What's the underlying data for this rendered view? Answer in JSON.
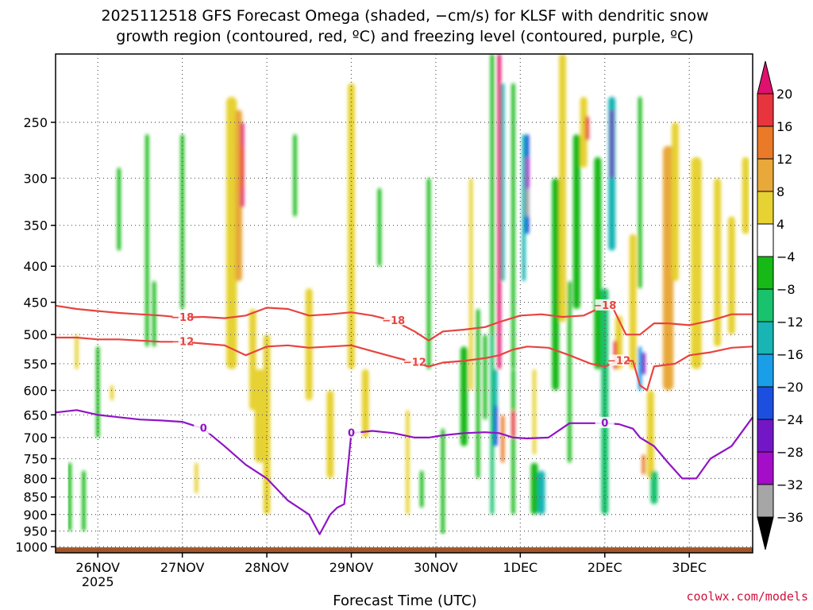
{
  "chart_data": {
    "type": "heatmap",
    "title_line1": "2025112518 GFS Forecast Omega (shaded, −cm/s) for KLSF with dendritic snow",
    "title_line2": "growth region (contoured, red, ºC) and freezing level (contoured, purple, ºC)",
    "xlabel": "Forecast Time (UTC)",
    "credit": "coolwx.com/models",
    "y_ticks": [
      {
        "label": "250",
        "value": 250
      },
      {
        "label": "300",
        "value": 300
      },
      {
        "label": "350",
        "value": 350
      },
      {
        "label": "400",
        "value": 400
      },
      {
        "label": "450",
        "value": 450
      },
      {
        "label": "500",
        "value": 500
      },
      {
        "label": "550",
        "value": 550
      },
      {
        "label": "600",
        "value": 600
      },
      {
        "label": "650",
        "value": 650
      },
      {
        "label": "700",
        "value": 700
      },
      {
        "label": "750",
        "value": 750
      },
      {
        "label": "800",
        "value": 800
      },
      {
        "label": "850",
        "value": 850
      },
      {
        "label": "900",
        "value": 900
      },
      {
        "label": "950",
        "value": 950
      },
      {
        "label": "1000",
        "value": 1000
      }
    ],
    "y_range_hpa": [
      200,
      1020
    ],
    "x_range_hours": [
      -6,
      192
    ],
    "x_ticks": [
      {
        "label": "26NOV",
        "hour": 6,
        "sub": "2025"
      },
      {
        "label": "27NOV",
        "hour": 30
      },
      {
        "label": "28NOV",
        "hour": 54
      },
      {
        "label": "29NOV",
        "hour": 78
      },
      {
        "label": "30NOV",
        "hour": 102
      },
      {
        "label": "1DEC",
        "hour": 126
      },
      {
        "label": "2DEC",
        "hour": 150
      },
      {
        "label": "3DEC",
        "hour": 174
      }
    ],
    "colorbar": {
      "labels": [
        "20",
        "16",
        "12",
        "8",
        "4",
        "−4",
        "−8",
        "−12",
        "−16",
        "−20",
        "−24",
        "−28",
        "−32",
        "−36"
      ],
      "colors": [
        "#e0106e",
        "#e8343c",
        "#ea7a28",
        "#e8a83a",
        "#e6d233",
        "#ffffff",
        "#17b917",
        "#19c26c",
        "#19b4b4",
        "#1a9ee8",
        "#1c4fe0",
        "#7317c6",
        "#a40ec8",
        "#a6a6a6",
        "#000000"
      ]
    },
    "contours": [
      {
        "label": "−18",
        "color": "#e8433f",
        "level": -18,
        "hours": [
          -6,
          0,
          6,
          12,
          18,
          24,
          30,
          36,
          42,
          48,
          54,
          60,
          66,
          72,
          78,
          84,
          90,
          96,
          100,
          104,
          110,
          116,
          120,
          126,
          132,
          138,
          144,
          150,
          152,
          156,
          160,
          164,
          168,
          174,
          180,
          186,
          192
        ],
        "hpa": [
          455,
          460,
          463,
          466,
          468,
          470,
          473,
          472,
          474,
          470,
          458,
          460,
          470,
          468,
          465,
          470,
          478,
          495,
          510,
          495,
          492,
          488,
          480,
          470,
          468,
          472,
          470,
          455,
          455,
          500,
          500,
          482,
          482,
          485,
          478,
          468,
          468
        ]
      },
      {
        "label": "−12",
        "color": "#e8433f",
        "level": -12,
        "hours": [
          -6,
          0,
          6,
          12,
          18,
          24,
          30,
          36,
          42,
          48,
          52,
          54,
          60,
          66,
          72,
          78,
          84,
          90,
          96,
          100,
          104,
          110,
          116,
          120,
          124,
          128,
          134,
          140,
          146,
          150,
          154,
          158,
          160,
          162,
          164,
          170,
          174,
          180,
          186,
          192
        ],
        "hpa": [
          505,
          505,
          508,
          508,
          510,
          512,
          512,
          515,
          518,
          535,
          525,
          520,
          518,
          522,
          520,
          518,
          528,
          538,
          548,
          555,
          548,
          545,
          540,
          535,
          525,
          520,
          522,
          535,
          550,
          555,
          545,
          545,
          590,
          600,
          555,
          550,
          535,
          530,
          522,
          520
        ]
      },
      {
        "label": "0",
        "color": "#9014c4",
        "level": 0,
        "hours": [
          -6,
          0,
          6,
          12,
          18,
          24,
          30,
          36,
          42,
          48,
          54,
          60,
          66,
          68,
          69,
          70,
          72,
          74,
          76,
          78,
          84,
          90,
          96,
          100,
          104,
          110,
          116,
          120,
          124,
          128,
          134,
          140,
          146,
          150,
          154,
          158,
          160,
          164,
          168,
          172,
          176,
          180,
          186,
          192
        ],
        "hpa": [
          645,
          640,
          650,
          655,
          660,
          662,
          665,
          680,
          720,
          765,
          800,
          860,
          900,
          940,
          960,
          940,
          900,
          880,
          870,
          690,
          685,
          690,
          700,
          700,
          695,
          690,
          688,
          690,
          700,
          702,
          700,
          668,
          668,
          668,
          670,
          680,
          700,
          720,
          760,
          800,
          800,
          750,
          720,
          655
        ]
      }
    ]
  }
}
